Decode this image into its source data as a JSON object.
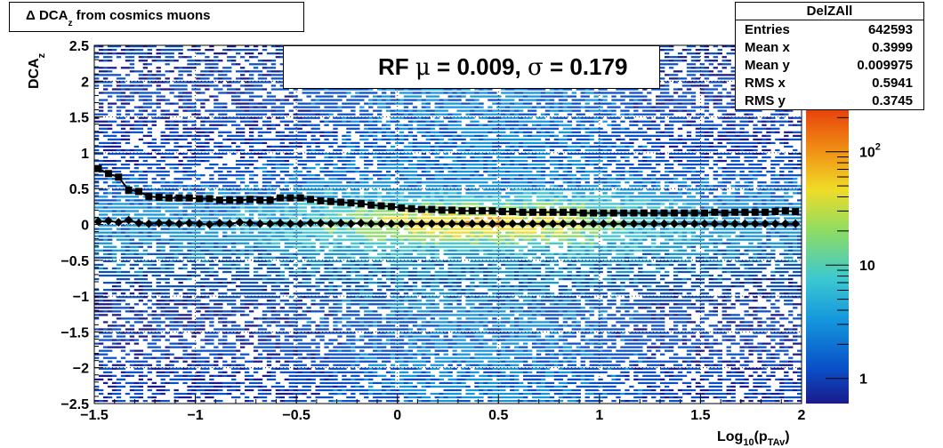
{
  "title": {
    "prefix": "Δ DCA",
    "sub": "z",
    "suffix": " from cosmics muons"
  },
  "stats": {
    "name": "DelZAll",
    "rows": [
      {
        "label": "Entries",
        "value": "642593"
      },
      {
        "label": "Mean x",
        "value": "0.3999"
      },
      {
        "label": "Mean y",
        "value": "0.009975"
      },
      {
        "label": "RMS x",
        "value": "0.5941"
      },
      {
        "label": "RMS y",
        "value": "0.3745"
      }
    ]
  },
  "legend": {
    "label": "RF",
    "mu_symbol": "μ",
    "mu_text": " =  0.009,",
    "sigma_symbol": "σ",
    "sigma_text": " =   0.179"
  },
  "colors": {
    "markers": "#000000",
    "palette": [
      "#1a1a8c",
      "#0a50c8",
      "#1496dc",
      "#3cc8d2",
      "#8cdc64",
      "#f0dc28",
      "#f08c14",
      "#e63c0a"
    ]
  },
  "chart_data": {
    "type": "heatmap",
    "xlabel_main": "Log",
    "xlabel_sub1": "10",
    "xlabel_mid": "(p",
    "xlabel_sub2": "TAv",
    "xlabel_end": ")",
    "ylabel_main": "DCA",
    "ylabel_sub": "z",
    "xlim": [
      -1.5,
      2.0
    ],
    "ylim": [
      -2.5,
      2.5
    ],
    "x_ticks": [
      -1.5,
      -1,
      -0.5,
      0,
      0.5,
      1,
      1.5,
      2
    ],
    "x_tick_labels": [
      "−1.5",
      "−1",
      "−0.5",
      "0",
      "0.5",
      "1",
      "1.5",
      "2"
    ],
    "y_ticks": [
      -2.5,
      -2,
      -1.5,
      -1,
      -0.5,
      0,
      0.5,
      1,
      1.5,
      2,
      2.5
    ],
    "y_tick_labels": [
      "−2.5",
      "−2",
      "−1.5",
      "−1",
      "−0.5",
      "0",
      "0.5",
      "1",
      "1.5",
      "2",
      "2.5"
    ],
    "z_log": true,
    "z_tick_labels": [
      {
        "main": "1",
        "exp": "",
        "value": 1
      },
      {
        "main": "10",
        "exp": "",
        "value": 10
      },
      {
        "main": "10",
        "exp": "2",
        "value": 100
      }
    ],
    "grid": true,
    "series": [
      {
        "x": [
          -1.48,
          -1.43,
          -1.38,
          -1.33,
          -1.28,
          -1.23,
          -1.18,
          -1.13,
          -1.08,
          -1.03,
          -0.98,
          -0.93,
          -0.88,
          -0.83,
          -0.78,
          -0.73,
          -0.68,
          -0.63,
          -0.58,
          -0.53,
          -0.48,
          -0.43,
          -0.38,
          -0.33,
          -0.28,
          -0.23,
          -0.18,
          -0.13,
          -0.08,
          -0.03,
          0.02,
          0.07,
          0.12,
          0.17,
          0.22,
          0.27,
          0.32,
          0.37,
          0.42,
          0.47,
          0.52,
          0.57,
          0.62,
          0.67,
          0.72,
          0.77,
          0.82,
          0.87,
          0.92,
          0.97,
          1.02,
          1.07,
          1.12,
          1.17,
          1.22,
          1.27,
          1.32,
          1.37,
          1.42,
          1.47,
          1.52,
          1.57,
          1.62,
          1.67,
          1.72,
          1.77,
          1.82,
          1.87,
          1.92,
          1.97
        ],
        "y": [
          0.04,
          0.05,
          0.03,
          0.06,
          0.02,
          0.01,
          0.02,
          0.02,
          0.01,
          0.02,
          0.01,
          0.0,
          0.02,
          0.01,
          0.03,
          0.02,
          0.01,
          0.01,
          0.02,
          0.01,
          0.01,
          0.02,
          0.02,
          0.01,
          0.02,
          0.01,
          0.02,
          0.01,
          0.01,
          0.01,
          0.01,
          0.01,
          0.01,
          0.01,
          0.01,
          0.01,
          0.01,
          0.01,
          0.01,
          0.01,
          0.01,
          0.01,
          0.01,
          0.01,
          0.01,
          0.01,
          0.01,
          0.01,
          0.01,
          0.01,
          0.01,
          0.01,
          0.01,
          0.01,
          0.01,
          0.01,
          0.01,
          0.01,
          0.01,
          0.01,
          0.01,
          0.01,
          0.01,
          0.01,
          0.01,
          0.01,
          0.01,
          0.01,
          0.01,
          0.01
        ]
      },
      {
        "x": [
          -1.48,
          -1.43,
          -1.38,
          -1.33,
          -1.28,
          -1.23,
          -1.18,
          -1.13,
          -1.08,
          -1.03,
          -0.98,
          -0.93,
          -0.88,
          -0.83,
          -0.78,
          -0.73,
          -0.68,
          -0.63,
          -0.58,
          -0.53,
          -0.48,
          -0.43,
          -0.38,
          -0.33,
          -0.28,
          -0.23,
          -0.18,
          -0.13,
          -0.08,
          -0.03,
          0.02,
          0.07,
          0.12,
          0.17,
          0.22,
          0.27,
          0.32,
          0.37,
          0.42,
          0.47,
          0.52,
          0.57,
          0.62,
          0.67,
          0.72,
          0.77,
          0.82,
          0.87,
          0.92,
          0.97,
          1.02,
          1.07,
          1.12,
          1.17,
          1.22,
          1.27,
          1.32,
          1.37,
          1.42,
          1.47,
          1.52,
          1.57,
          1.62,
          1.67,
          1.72,
          1.77,
          1.82,
          1.87,
          1.92,
          1.97
        ],
        "y": [
          0.78,
          0.71,
          0.66,
          0.48,
          0.46,
          0.39,
          0.38,
          0.37,
          0.37,
          0.37,
          0.36,
          0.36,
          0.34,
          0.34,
          0.34,
          0.35,
          0.34,
          0.34,
          0.37,
          0.37,
          0.37,
          0.35,
          0.33,
          0.32,
          0.31,
          0.3,
          0.29,
          0.27,
          0.26,
          0.25,
          0.23,
          0.22,
          0.21,
          0.21,
          0.2,
          0.2,
          0.19,
          0.19,
          0.19,
          0.19,
          0.18,
          0.18,
          0.17,
          0.17,
          0.17,
          0.17,
          0.17,
          0.17,
          0.16,
          0.16,
          0.16,
          0.16,
          0.16,
          0.16,
          0.16,
          0.16,
          0.16,
          0.16,
          0.16,
          0.16,
          0.16,
          0.17,
          0.16,
          0.17,
          0.17,
          0.17,
          0.17,
          0.18,
          0.19,
          0.18
        ]
      }
    ]
  }
}
